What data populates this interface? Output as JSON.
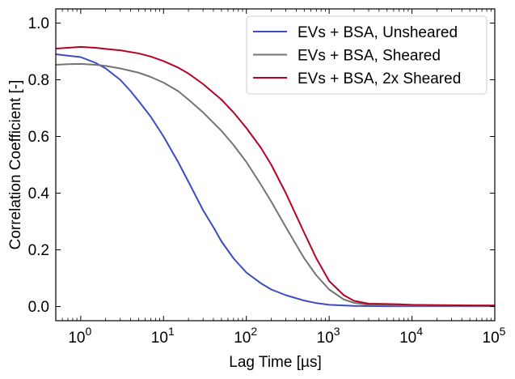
{
  "chart_data": {
    "type": "line",
    "title": "",
    "xlabel": "Lag Time [µs]",
    "ylabel": "Correlation Coefficient [-]",
    "x_scale": "log",
    "xlim": [
      0.5,
      100000
    ],
    "ylim": [
      -0.05,
      1.05
    ],
    "grid": false,
    "legend_position": "top-right",
    "x_ticks": [
      {
        "value": 1,
        "base": "10",
        "exp": "0"
      },
      {
        "value": 10,
        "base": "10",
        "exp": "1"
      },
      {
        "value": 100,
        "base": "10",
        "exp": "2"
      },
      {
        "value": 1000,
        "base": "10",
        "exp": "3"
      },
      {
        "value": 10000,
        "base": "10",
        "exp": "4"
      },
      {
        "value": 100000,
        "base": "10",
        "exp": "5"
      }
    ],
    "y_ticks": [
      {
        "value": 0.0,
        "label": "0.0"
      },
      {
        "value": 0.2,
        "label": "0.2"
      },
      {
        "value": 0.4,
        "label": "0.4"
      },
      {
        "value": 0.6,
        "label": "0.6"
      },
      {
        "value": 0.8,
        "label": "0.8"
      },
      {
        "value": 1.0,
        "label": "1.0"
      }
    ],
    "series": [
      {
        "name": "EVs + BSA, Unsheared",
        "color": "#3b4cc0",
        "points": [
          [
            0.5,
            0.89
          ],
          [
            0.7,
            0.885
          ],
          [
            1,
            0.88
          ],
          [
            1.5,
            0.86
          ],
          [
            2,
            0.84
          ],
          [
            3,
            0.8
          ],
          [
            4,
            0.76
          ],
          [
            5,
            0.725
          ],
          [
            7,
            0.67
          ],
          [
            10,
            0.6
          ],
          [
            15,
            0.51
          ],
          [
            20,
            0.44
          ],
          [
            30,
            0.34
          ],
          [
            40,
            0.28
          ],
          [
            50,
            0.23
          ],
          [
            70,
            0.17
          ],
          [
            100,
            0.12
          ],
          [
            150,
            0.082
          ],
          [
            200,
            0.06
          ],
          [
            300,
            0.04
          ],
          [
            500,
            0.021
          ],
          [
            700,
            0.012
          ],
          [
            1000,
            0.006
          ],
          [
            2000,
            0.002
          ],
          [
            5000,
            0.001
          ],
          [
            10000,
            0.001
          ],
          [
            100000,
            0.001
          ]
        ]
      },
      {
        "name": "EVs + BSA, Sheared",
        "color": "#747474",
        "points": [
          [
            0.5,
            0.853
          ],
          [
            0.7,
            0.855
          ],
          [
            1,
            0.856
          ],
          [
            1.5,
            0.853
          ],
          [
            2,
            0.849
          ],
          [
            3,
            0.84
          ],
          [
            5,
            0.825
          ],
          [
            7,
            0.81
          ],
          [
            10,
            0.79
          ],
          [
            15,
            0.76
          ],
          [
            20,
            0.73
          ],
          [
            30,
            0.685
          ],
          [
            50,
            0.62
          ],
          [
            70,
            0.57
          ],
          [
            100,
            0.51
          ],
          [
            150,
            0.43
          ],
          [
            200,
            0.37
          ],
          [
            300,
            0.28
          ],
          [
            500,
            0.17
          ],
          [
            700,
            0.11
          ],
          [
            1000,
            0.06
          ],
          [
            1500,
            0.025
          ],
          [
            2000,
            0.013
          ],
          [
            3000,
            0.006
          ],
          [
            5000,
            0.004
          ],
          [
            10000,
            0.003
          ],
          [
            30000,
            0.002
          ],
          [
            100000,
            0.002
          ]
        ]
      },
      {
        "name": "EVs + BSA, 2x Sheared",
        "color": "#b40426",
        "points": [
          [
            0.5,
            0.91
          ],
          [
            0.7,
            0.913
          ],
          [
            1,
            0.916
          ],
          [
            1.5,
            0.913
          ],
          [
            2,
            0.909
          ],
          [
            3,
            0.904
          ],
          [
            5,
            0.893
          ],
          [
            7,
            0.882
          ],
          [
            10,
            0.866
          ],
          [
            15,
            0.843
          ],
          [
            20,
            0.822
          ],
          [
            30,
            0.785
          ],
          [
            50,
            0.73
          ],
          [
            70,
            0.685
          ],
          [
            100,
            0.63
          ],
          [
            150,
            0.56
          ],
          [
            200,
            0.5
          ],
          [
            300,
            0.4
          ],
          [
            500,
            0.26
          ],
          [
            700,
            0.17
          ],
          [
            1000,
            0.09
          ],
          [
            1500,
            0.04
          ],
          [
            2000,
            0.02
          ],
          [
            3000,
            0.01
          ],
          [
            5000,
            0.009
          ],
          [
            7000,
            0.008
          ],
          [
            10000,
            0.006
          ],
          [
            20000,
            0.005
          ],
          [
            50000,
            0.004
          ],
          [
            100000,
            0.004
          ]
        ]
      }
    ]
  }
}
